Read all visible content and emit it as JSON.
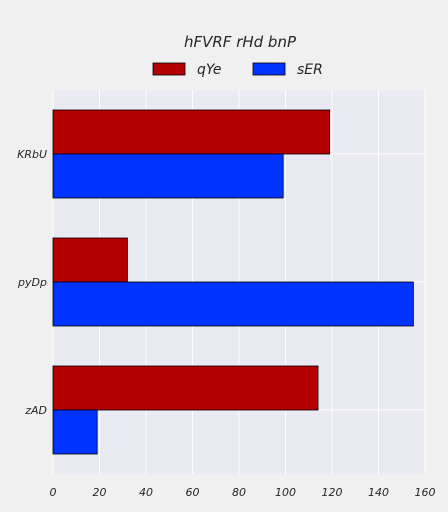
{
  "chart_data": {
    "type": "bar",
    "orientation": "horizontal",
    "title": "hFVRF rHd bnP",
    "xlabel": "",
    "ylabel": "",
    "categories": [
      "KRbU",
      "pyDp",
      "zAD"
    ],
    "series": [
      {
        "name": "qYe",
        "color": "#b30000",
        "values": [
          119,
          32,
          114
        ]
      },
      {
        "name": "sER",
        "color": "#0033ff",
        "values": [
          99,
          155,
          19
        ]
      }
    ],
    "xlim": [
      0,
      160
    ],
    "xticks": [
      0,
      20,
      40,
      60,
      80,
      100,
      120,
      140,
      160
    ],
    "grid": true,
    "legend_position": "top-center",
    "plot_background": "#eaeaf2",
    "page_background": "#f0f0f0"
  }
}
